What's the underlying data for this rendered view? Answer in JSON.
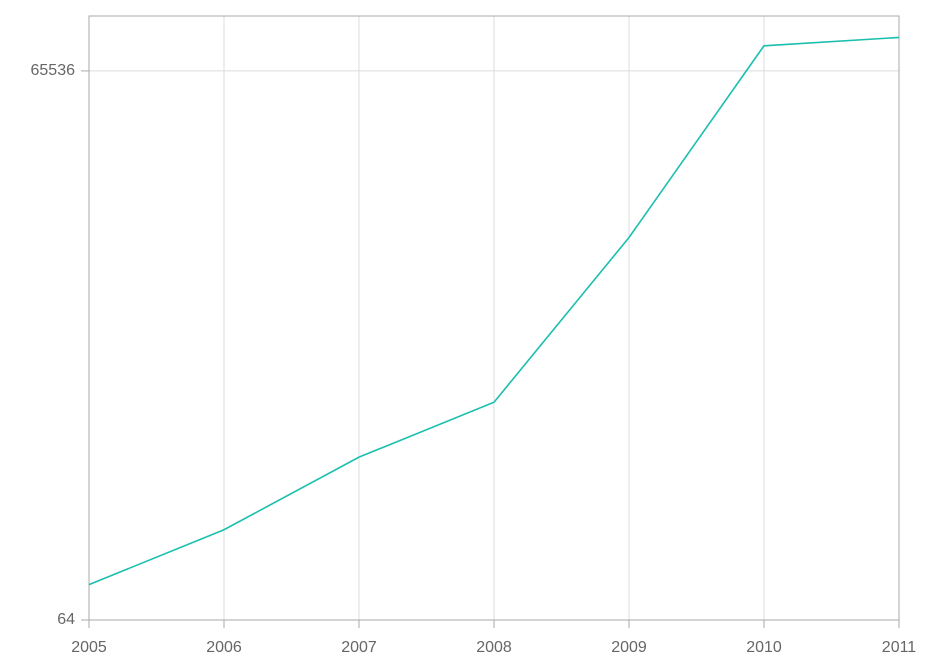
{
  "chart_data": {
    "type": "line",
    "x": [
      2005,
      2006,
      2007,
      2008,
      2009,
      2010,
      2011
    ],
    "series": [
      {
        "color": "#1bbfae",
        "values": [
          100,
          200,
          500,
          1000,
          8000,
          90000,
          100000
        ]
      }
    ],
    "xlim": [
      2005,
      2011
    ],
    "xticks": [
      2005,
      2006,
      2007,
      2008,
      2009,
      2010,
      2011
    ],
    "ylim": [
      64,
      131072
    ],
    "yticks": [
      64,
      65536
    ],
    "log_y": true,
    "log_base": 2,
    "grid": true
  }
}
